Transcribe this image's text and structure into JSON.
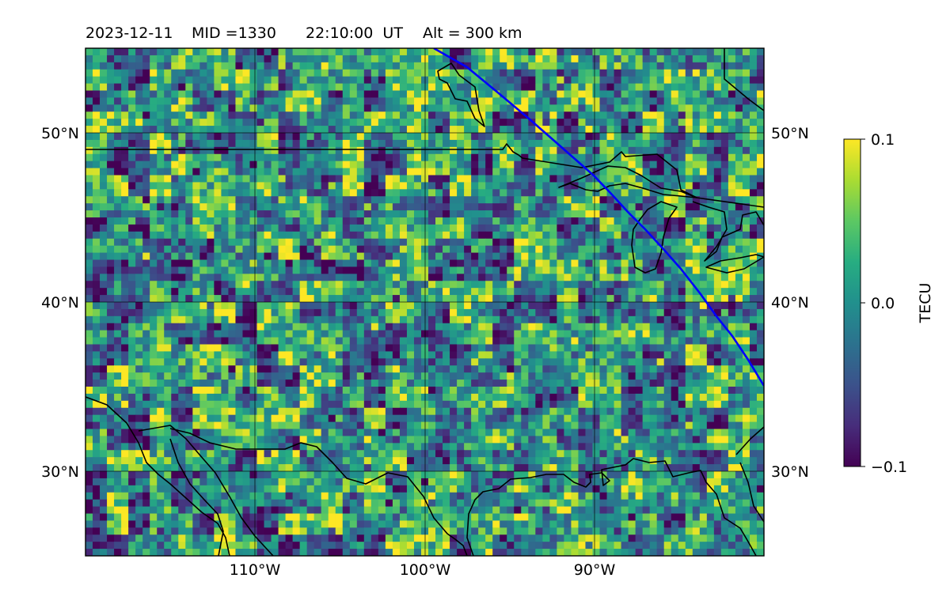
{
  "title": {
    "date": "2023-12-11",
    "mid": "MID =1330",
    "time": "22:10:00  UT",
    "alt": "Alt = 300 km"
  },
  "map": {
    "lat_range": [
      25,
      55
    ],
    "lon_range": [
      -120,
      -80
    ],
    "lat_ticks": [
      "30°N",
      "40°N",
      "50°N"
    ],
    "lon_ticks": [
      "110°W",
      "100°W",
      "90°W"
    ],
    "gridlines": true,
    "coastline_color": "#000000",
    "track_color": "#0000ff"
  },
  "colorbar": {
    "label": "TECU",
    "max_label": "0.1",
    "mid_label": "0.0",
    "min_label": "−0.1",
    "colormap": "viridis",
    "range": [
      -0.1,
      0.1
    ]
  }
}
